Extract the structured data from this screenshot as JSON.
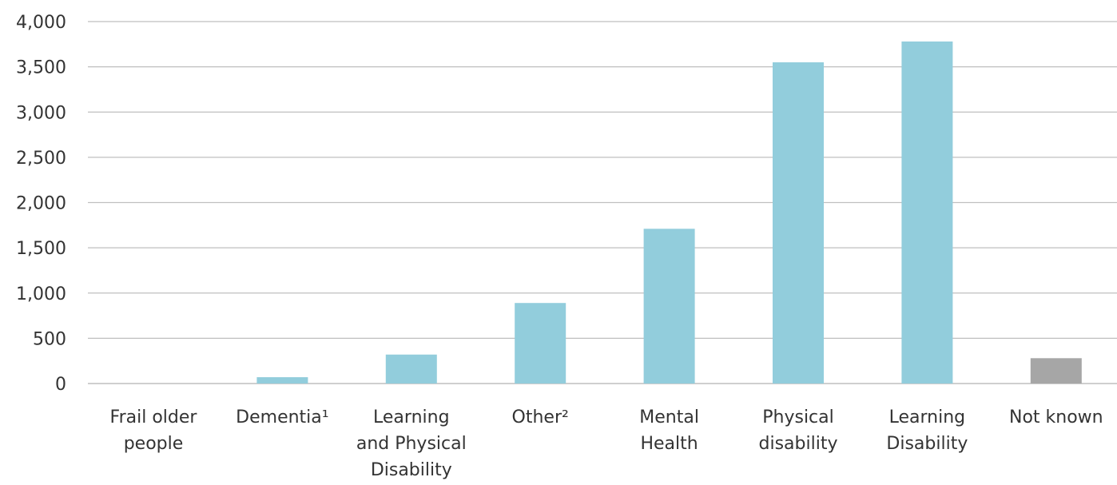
{
  "chart_data": {
    "type": "bar",
    "title": "",
    "xlabel": "",
    "ylabel": "",
    "ylim": [
      0,
      4000
    ],
    "yticks": [
      0,
      500,
      1000,
      1500,
      2000,
      2500,
      3000,
      3500,
      4000
    ],
    "ytick_labels": [
      "0",
      "500",
      "1,000",
      "1,500",
      "2,000",
      "2,500",
      "3,000",
      "3,500",
      "4,000"
    ],
    "grid": true,
    "legend": "none",
    "categories": [
      [
        "Frail older",
        "people"
      ],
      [
        "Dementia¹"
      ],
      [
        "Learning",
        "and Physical",
        "Disability"
      ],
      [
        "Other²"
      ],
      [
        "Mental",
        "Health"
      ],
      [
        "Physical",
        "disability"
      ],
      [
        "Learning",
        "Disability"
      ],
      [
        "Not known"
      ]
    ],
    "values": [
      0,
      70,
      320,
      890,
      1710,
      3550,
      3780,
      280
    ],
    "colors": [
      "#92cddc",
      "#92cddc",
      "#92cddc",
      "#92cddc",
      "#92cddc",
      "#92cddc",
      "#92cddc",
      "#a6a6a6"
    ]
  }
}
